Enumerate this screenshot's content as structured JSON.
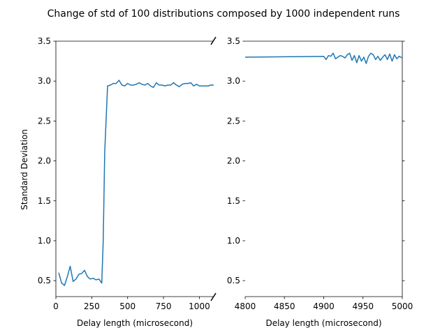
{
  "chart_data": {
    "type": "line",
    "title": "Change of std of 100 distributions composed by 1000 independent runs",
    "ylabel": "Standard Deviation",
    "ylim": [
      0.3,
      3.5
    ],
    "yticks": [
      "0.5",
      "1.0",
      "1.5",
      "2.0",
      "2.5",
      "3.0",
      "3.5"
    ],
    "series_color": "#1f77b4",
    "panels": [
      {
        "xlabel": "Delay length (microsecond)",
        "xlim": [
          0,
          1100
        ],
        "xticks": [
          "0",
          "250",
          "500",
          "750",
          "1000"
        ],
        "x": [
          20,
          40,
          60,
          80,
          100,
          120,
          140,
          160,
          180,
          200,
          220,
          240,
          260,
          280,
          300,
          320,
          330,
          340,
          360,
          380,
          400,
          420,
          440,
          460,
          480,
          500,
          520,
          540,
          560,
          580,
          600,
          620,
          640,
          660,
          680,
          700,
          720,
          740,
          760,
          780,
          800,
          820,
          840,
          860,
          880,
          900,
          920,
          940,
          960,
          980,
          1000,
          1020,
          1040,
          1060,
          1080,
          1100
        ],
        "y": [
          0.6,
          0.47,
          0.44,
          0.55,
          0.68,
          0.49,
          0.52,
          0.58,
          0.59,
          0.63,
          0.55,
          0.52,
          0.53,
          0.51,
          0.52,
          0.47,
          1.0,
          2.1,
          2.94,
          2.95,
          2.97,
          2.97,
          3.01,
          2.95,
          2.94,
          2.97,
          2.95,
          2.95,
          2.96,
          2.98,
          2.96,
          2.95,
          2.97,
          2.94,
          2.92,
          2.98,
          2.95,
          2.95,
          2.94,
          2.95,
          2.95,
          2.98,
          2.95,
          2.93,
          2.96,
          2.97,
          2.97,
          2.98,
          2.94,
          2.96,
          2.94,
          2.94,
          2.94,
          2.94,
          2.95,
          2.95
        ]
      },
      {
        "xlabel": "Delay length (microsecond)",
        "xlim": [
          4800,
          5000
        ],
        "xticks": [
          "4800",
          "4850",
          "4900",
          "4950",
          "5000"
        ],
        "x": [
          4800,
          4900,
          4903,
          4906,
          4909,
          4912,
          4915,
          4918,
          4921,
          4924,
          4927,
          4930,
          4933,
          4936,
          4939,
          4942,
          4945,
          4948,
          4951,
          4954,
          4957,
          4960,
          4963,
          4966,
          4969,
          4972,
          4975,
          4978,
          4981,
          4984,
          4987,
          4990,
          4993,
          4996,
          5000
        ],
        "y": [
          3.3,
          3.31,
          3.27,
          3.32,
          3.31,
          3.35,
          3.28,
          3.3,
          3.32,
          3.31,
          3.29,
          3.33,
          3.35,
          3.26,
          3.32,
          3.23,
          3.32,
          3.25,
          3.3,
          3.22,
          3.31,
          3.35,
          3.33,
          3.27,
          3.31,
          3.26,
          3.3,
          3.33,
          3.27,
          3.34,
          3.25,
          3.33,
          3.28,
          3.31,
          3.29
        ]
      }
    ]
  }
}
